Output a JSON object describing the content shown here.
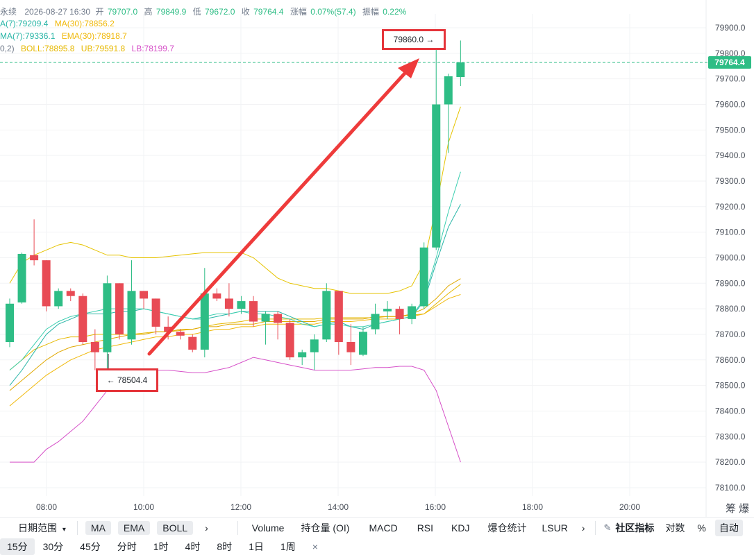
{
  "colors": {
    "up": "#2ebd85",
    "down": "#e84b55",
    "ma7": "#27b5a6",
    "ma30": "#f0b90b",
    "boll_mid": "#e6b800",
    "boll_ub": "#e6c300",
    "boll_lb": "#d650c8",
    "arrow": "#ee3b3b",
    "grid": "#f2f3f5",
    "current_price_bg": "#2ebd85"
  },
  "info": {
    "line1": {
      "prefix": "永续",
      "datetime": "2026-08-27 16:30",
      "open_label": "开",
      "open": "79707.0",
      "high_label": "高",
      "high": "79849.9",
      "low_label": "低",
      "low": "79672.0",
      "close_label": "收",
      "close": "79764.4",
      "change_label": "涨幅",
      "change": "0.07%(57.4)",
      "amp_label": "振幅",
      "amp": "0.22%"
    },
    "line2": {
      "ma7": "A(7):79209.4",
      "ma30": "MA(30):78856.2"
    },
    "line3": {
      "ema7": "MA(7):79336.1",
      "ema30": "EMA(30):78918.7"
    },
    "line4": {
      "prefix": "0,2)",
      "boll": "BOLL:78895.8",
      "ub": "UB:79591.8",
      "lb": "LB:78199.7"
    }
  },
  "price_axis": {
    "ticks": [
      "79900.0",
      "79800.0",
      "79700.0",
      "79600.0",
      "79500.0",
      "79400.0",
      "79300.0",
      "79200.0",
      "79100.0",
      "79000.0",
      "78900.0",
      "78800.0",
      "78700.0",
      "78600.0",
      "78500.0",
      "78400.0",
      "78300.0",
      "78200.0",
      "78100.0"
    ],
    "current_price": "79764.4",
    "extra_label": "筹 爆"
  },
  "time_axis": {
    "ticks": [
      "08:00",
      "10:00",
      "12:00",
      "14:00",
      "16:00",
      "18:00",
      "20:00"
    ]
  },
  "annotations": {
    "high_box": "79860.0 →",
    "low_box": "← 78504.4"
  },
  "candles": [
    {
      "o": 78670,
      "h": 78840,
      "l": 78650,
      "c": 78820
    },
    {
      "o": 78825,
      "h": 79020,
      "l": 78820,
      "c": 79015
    },
    {
      "o": 79010,
      "h": 79150,
      "l": 78970,
      "c": 78990
    },
    {
      "o": 78990,
      "h": 78990,
      "l": 78790,
      "c": 78810
    },
    {
      "o": 78810,
      "h": 78880,
      "l": 78800,
      "c": 78870
    },
    {
      "o": 78870,
      "h": 78880,
      "l": 78830,
      "c": 78850
    },
    {
      "o": 78850,
      "h": 78860,
      "l": 78660,
      "c": 78670
    },
    {
      "o": 78670,
      "h": 78720,
      "l": 78560,
      "c": 78630
    },
    {
      "o": 78630,
      "h": 78930,
      "l": 78504,
      "c": 78900
    },
    {
      "o": 78900,
      "h": 78900,
      "l": 78680,
      "c": 78700
    },
    {
      "o": 78680,
      "h": 78990,
      "l": 78660,
      "c": 78870
    },
    {
      "o": 78870,
      "h": 78870,
      "l": 78800,
      "c": 78840
    },
    {
      "o": 78840,
      "h": 78840,
      "l": 78700,
      "c": 78730
    },
    {
      "o": 78730,
      "h": 78770,
      "l": 78680,
      "c": 78710
    },
    {
      "o": 78710,
      "h": 78720,
      "l": 78680,
      "c": 78695
    },
    {
      "o": 78690,
      "h": 78700,
      "l": 78630,
      "c": 78640
    },
    {
      "o": 78640,
      "h": 78960,
      "l": 78610,
      "c": 78860
    },
    {
      "o": 78860,
      "h": 78880,
      "l": 78830,
      "c": 78840
    },
    {
      "o": 78840,
      "h": 78900,
      "l": 78770,
      "c": 78800
    },
    {
      "o": 78800,
      "h": 78850,
      "l": 78780,
      "c": 78830
    },
    {
      "o": 78830,
      "h": 78850,
      "l": 78730,
      "c": 78750
    },
    {
      "o": 78750,
      "h": 78790,
      "l": 78660,
      "c": 78780
    },
    {
      "o": 78780,
      "h": 78790,
      "l": 78680,
      "c": 78745
    },
    {
      "o": 78745,
      "h": 78760,
      "l": 78600,
      "c": 78610
    },
    {
      "o": 78610,
      "h": 78640,
      "l": 78580,
      "c": 78630
    },
    {
      "o": 78630,
      "h": 78700,
      "l": 78560,
      "c": 78680
    },
    {
      "o": 78680,
      "h": 78900,
      "l": 78670,
      "c": 78870
    },
    {
      "o": 78870,
      "h": 78870,
      "l": 78620,
      "c": 78670
    },
    {
      "o": 78670,
      "h": 78740,
      "l": 78580,
      "c": 78630
    },
    {
      "o": 78620,
      "h": 78730,
      "l": 78615,
      "c": 78710
    },
    {
      "o": 78720,
      "h": 78820,
      "l": 78700,
      "c": 78780
    },
    {
      "o": 78790,
      "h": 78830,
      "l": 78760,
      "c": 78800
    },
    {
      "o": 78800,
      "h": 78810,
      "l": 78700,
      "c": 78760
    },
    {
      "o": 78760,
      "h": 78820,
      "l": 78740,
      "c": 78810
    },
    {
      "o": 78810,
      "h": 79060,
      "l": 78800,
      "c": 79040
    },
    {
      "o": 79040,
      "h": 79860,
      "l": 79030,
      "c": 79600
    },
    {
      "o": 79600,
      "h": 79720,
      "l": 79410,
      "c": 79710
    },
    {
      "o": 79707,
      "h": 79850,
      "l": 79672,
      "c": 79764.4
    }
  ],
  "ma7": [
    78500,
    78560,
    78630,
    78700,
    78740,
    78760,
    78780,
    78780,
    78780,
    78790,
    78790,
    78800,
    78790,
    78780,
    78770,
    78760,
    78760,
    78770,
    78780,
    78790,
    78790,
    78790,
    78790,
    78770,
    78750,
    78730,
    78740,
    78750,
    78730,
    78720,
    78740,
    78750,
    78760,
    78770,
    78830,
    78980,
    79120,
    79209
  ],
  "ma30": [
    78420,
    78460,
    78500,
    78540,
    78570,
    78600,
    78620,
    78640,
    78650,
    78660,
    78670,
    78680,
    78690,
    78690,
    78700,
    78700,
    78710,
    78720,
    78720,
    78730,
    78730,
    78740,
    78740,
    78740,
    78740,
    78740,
    78750,
    78750,
    78750,
    78755,
    78760,
    78760,
    78760,
    78770,
    78780,
    78810,
    78840,
    78856
  ],
  "ema7": [
    78560,
    78600,
    78660,
    78720,
    78750,
    78770,
    78780,
    78790,
    78800,
    78800,
    78800,
    78800,
    78790,
    78780,
    78770,
    78760,
    78770,
    78780,
    78780,
    78790,
    78780,
    78780,
    78770,
    78760,
    78740,
    78730,
    78740,
    78740,
    78730,
    78730,
    78740,
    78750,
    78760,
    78770,
    78840,
    79000,
    79180,
    79336
  ],
  "ema30": [
    78480,
    78520,
    78560,
    78600,
    78630,
    78650,
    78660,
    78670,
    78680,
    78690,
    78700,
    78700,
    78710,
    78710,
    78720,
    78720,
    78730,
    78730,
    78740,
    78740,
    78740,
    78750,
    78750,
    78750,
    78750,
    78750,
    78760,
    78760,
    78760,
    78760,
    78770,
    78770,
    78770,
    78780,
    78800,
    78840,
    78890,
    78918
  ],
  "boll_mid": [
    78560,
    78600,
    78640,
    78660,
    78680,
    78690,
    78690,
    78700,
    78700,
    78700,
    78700,
    78705,
    78710,
    78710,
    78715,
    78720,
    78730,
    78740,
    78745,
    78750,
    78760,
    78760,
    78760,
    78760,
    78760,
    78760,
    78765,
    78765,
    78765,
    78765,
    78765,
    78770,
    78770,
    78775,
    78780,
    78820,
    78860,
    78896
  ],
  "boll_ub": [
    78900,
    78980,
    79010,
    79030,
    79050,
    79060,
    79050,
    79030,
    79010,
    79010,
    79000,
    79000,
    79000,
    79005,
    79010,
    79015,
    79020,
    79020,
    79020,
    79020,
    79000,
    78960,
    78920,
    78900,
    78890,
    78880,
    78880,
    78870,
    78860,
    78860,
    78860,
    78860,
    78870,
    78890,
    78980,
    79200,
    79450,
    79591
  ],
  "boll_lb": [
    78200,
    78200,
    78200,
    78250,
    78280,
    78320,
    78360,
    78420,
    78480,
    78540,
    78550,
    78560,
    78560,
    78560,
    78555,
    78550,
    78550,
    78560,
    78570,
    78590,
    78610,
    78600,
    78590,
    78580,
    78570,
    78560,
    78560,
    78560,
    78560,
    78565,
    78570,
    78570,
    78575,
    78575,
    78560,
    78480,
    78340,
    78200
  ],
  "toolbar": {
    "date_range": "日期范围",
    "ma": "MA",
    "ema": "EMA",
    "boll": "BOLL",
    "more1": "›",
    "volume": "Volume",
    "oi": "持仓量 (OI)",
    "macd": "MACD",
    "rsi": "RSI",
    "kdj": "KDJ",
    "liq": "爆仓统计",
    "lsur": "LSUR",
    "more2": "›",
    "community": "社区指标",
    "log": "对数",
    "percent": "%",
    "auto": "自动"
  },
  "intervals": [
    "15分",
    "30分",
    "45分",
    "分时",
    "1时",
    "4时",
    "8时",
    "1日",
    "1周"
  ],
  "active_interval": "15分",
  "close_label": "×"
}
